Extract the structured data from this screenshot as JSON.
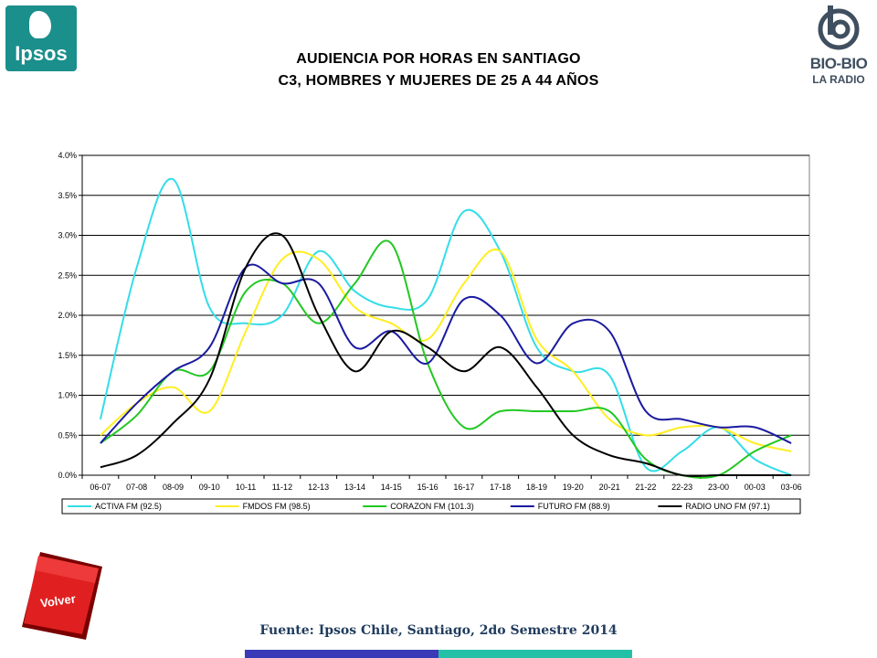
{
  "header": {
    "title_line1": "AUDIENCIA POR HORAS EN SANTIAGO",
    "title_line2": "C3, HOMBRES Y MUJERES DE 25 A 44 AÑOS"
  },
  "logos": {
    "ipsos": "Ipsos",
    "biobio_name": "BIO-BIO",
    "biobio_sub": "LA RADIO"
  },
  "nav": {
    "back_label": "Volver"
  },
  "footer": {
    "source": "Fuente: Ipsos Chile, Santiago, 2do Semestre 2014"
  },
  "colors": {
    "footer_blue": "#3a3ab8",
    "footer_green": "#24c1a6",
    "volver_red": "#e02020"
  },
  "chart_data": {
    "type": "line",
    "categories": [
      "06-07",
      "07-08",
      "08-09",
      "09-10",
      "10-11",
      "11-12",
      "12-13",
      "13-14",
      "14-15",
      "15-16",
      "16-17",
      "17-18",
      "18-19",
      "19-20",
      "20-21",
      "21-22",
      "22-23",
      "23-00",
      "00-03",
      "03-06"
    ],
    "ylim": [
      0,
      4
    ],
    "yticks": [
      "0.0%",
      "0.5%",
      "1.0%",
      "1.5%",
      "2.0%",
      "2.5%",
      "3.0%",
      "3.5%",
      "4.0%"
    ],
    "grid": true,
    "legend_position": "bottom",
    "series": [
      {
        "name": "ACTIVA FM (92.5)",
        "color": "#33dde8",
        "values": [
          0.7,
          2.6,
          3.7,
          2.1,
          1.9,
          2.0,
          2.8,
          2.3,
          2.1,
          2.2,
          3.3,
          2.8,
          1.6,
          1.3,
          1.25,
          0.1,
          0.3,
          0.6,
          0.2,
          0.0
        ]
      },
      {
        "name": "FMDOS FM (98.5)",
        "color": "#ffee22",
        "values": [
          0.5,
          0.9,
          1.1,
          0.8,
          1.8,
          2.7,
          2.7,
          2.1,
          1.9,
          1.7,
          2.4,
          2.8,
          1.7,
          1.3,
          0.7,
          0.5,
          0.6,
          0.6,
          0.4,
          0.3
        ]
      },
      {
        "name": "CORAZON FM (101.3)",
        "color": "#22c822",
        "values": [
          0.4,
          0.75,
          1.3,
          1.3,
          2.3,
          2.4,
          1.9,
          2.4,
          2.9,
          1.4,
          0.6,
          0.8,
          0.8,
          0.8,
          0.8,
          0.2,
          0.0,
          0.0,
          0.3,
          0.5
        ]
      },
      {
        "name": "FUTURO FM (88.9)",
        "color": "#1a1aa0",
        "values": [
          0.4,
          0.9,
          1.3,
          1.6,
          2.6,
          2.4,
          2.4,
          1.6,
          1.8,
          1.4,
          2.2,
          2.0,
          1.4,
          1.9,
          1.8,
          0.8,
          0.7,
          0.6,
          0.6,
          0.4
        ]
      },
      {
        "name": "RADIO UNO FM (97.1)",
        "color": "#000000",
        "values": [
          0.1,
          0.25,
          0.65,
          1.2,
          2.6,
          3.0,
          2.0,
          1.3,
          1.8,
          1.6,
          1.3,
          1.6,
          1.1,
          0.5,
          0.25,
          0.15,
          0.0,
          0.0,
          0.0,
          0.0
        ]
      }
    ]
  }
}
